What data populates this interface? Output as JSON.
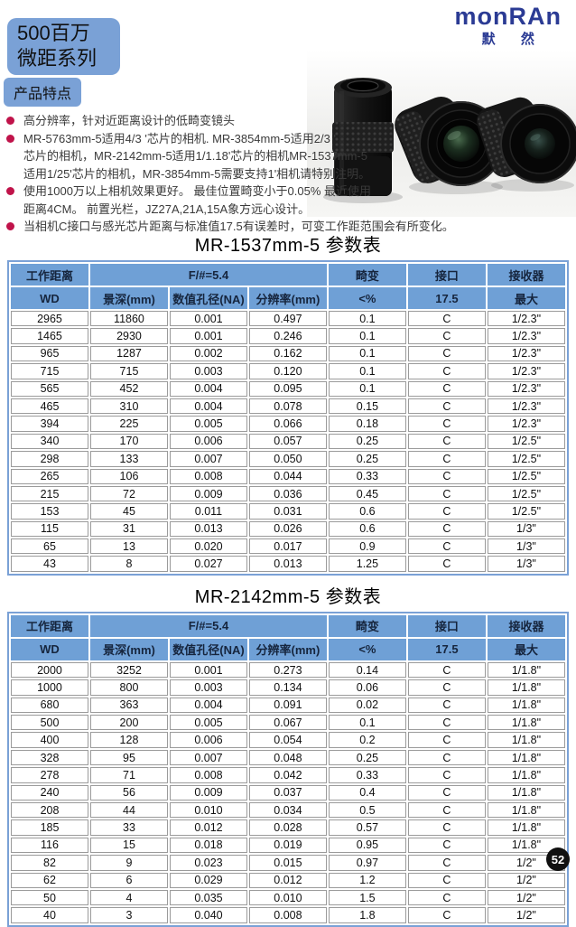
{
  "header": {
    "series_line1": "500百万",
    "series_line2": "微距系列",
    "section_tag": "产品特点"
  },
  "logo": {
    "brand": "monRAn",
    "cn": "默 然",
    "color": "#2b3b94"
  },
  "features": [
    {
      "lines": [
        "高分辨率，针对近距离设计的低畸变镜头"
      ]
    },
    {
      "lines": [
        "MR-5763mm-5适用4/3 '芯片的相机. MR-3854mm-5适用2/3 '",
        "芯片的相机，MR-2142mm-5适用1/1.18'芯片的相机MR-1537mm-5",
        "适用1/25'芯片的相机，MR-3854mm-5需要支持1'相机请特别注明。"
      ]
    },
    {
      "lines": [
        "使用1000万以上相机效果更好。 最佳位置畸变小于0.05% 最近使用",
        "距离4CM。 前置光栏，JZ27A,21A,15A象方远心设计。"
      ]
    },
    {
      "lines": [
        "当相机C接口与感光芯片距离与标准值17.5有误差时，可变工作距范围会有所变化。"
      ]
    }
  ],
  "colors": {
    "box_blue": "#7aa1d6",
    "table_header_blue": "#6fa0d6",
    "bullet_red": "#c0134a"
  },
  "tables": [
    {
      "title": "MR-1537mm-5 参数表",
      "header_row1": [
        {
          "label": "工作距离",
          "span": 1
        },
        {
          "label": "F/#=5.4",
          "span": 3
        },
        {
          "label": "畸变",
          "span": 1
        },
        {
          "label": "接口",
          "span": 1
        },
        {
          "label": "接收器",
          "span": 1
        }
      ],
      "header_row2": [
        "WD",
        "景深(mm)",
        "数值孔径(NA)",
        "分辨率(mm)",
        "<%",
        "17.5",
        "最大"
      ],
      "rows": [
        [
          "2965",
          "11860",
          "0.001",
          "0.497",
          "0.1",
          "C",
          "1/2.3\""
        ],
        [
          "1465",
          "2930",
          "0.001",
          "0.246",
          "0.1",
          "C",
          "1/2.3\""
        ],
        [
          "965",
          "1287",
          "0.002",
          "0.162",
          "0.1",
          "C",
          "1/2.3\""
        ],
        [
          "715",
          "715",
          "0.003",
          "0.120",
          "0.1",
          "C",
          "1/2.3\""
        ],
        [
          "565",
          "452",
          "0.004",
          "0.095",
          "0.1",
          "C",
          "1/2.3\""
        ],
        [
          "465",
          "310",
          "0.004",
          "0.078",
          "0.15",
          "C",
          "1/2.3\""
        ],
        [
          "394",
          "225",
          "0.005",
          "0.066",
          "0.18",
          "C",
          "1/2.3\""
        ],
        [
          "340",
          "170",
          "0.006",
          "0.057",
          "0.25",
          "C",
          "1/2.5\""
        ],
        [
          "298",
          "133",
          "0.007",
          "0.050",
          "0.25",
          "C",
          "1/2.5\""
        ],
        [
          "265",
          "106",
          "0.008",
          "0.044",
          "0.33",
          "C",
          "1/2.5\""
        ],
        [
          "215",
          "72",
          "0.009",
          "0.036",
          "0.45",
          "C",
          "1/2.5\""
        ],
        [
          "153",
          "45",
          "0.011",
          "0.031",
          "0.6",
          "C",
          "1/2.5\""
        ],
        [
          "115",
          "31",
          "0.013",
          "0.026",
          "0.6",
          "C",
          "1/3\""
        ],
        [
          "65",
          "13",
          "0.020",
          "0.017",
          "0.9",
          "C",
          "1/3\""
        ],
        [
          "43",
          "8",
          "0.027",
          "0.013",
          "1.25",
          "C",
          "1/3\""
        ]
      ]
    },
    {
      "title": "MR-2142mm-5 参数表",
      "header_row1": [
        {
          "label": "工作距离",
          "span": 1
        },
        {
          "label": "F/#=5.4",
          "span": 3
        },
        {
          "label": "畸变",
          "span": 1
        },
        {
          "label": "接口",
          "span": 1
        },
        {
          "label": "接收器",
          "span": 1
        }
      ],
      "header_row2": [
        "WD",
        "景深(mm)",
        "数值孔径(NA)",
        "分辨率(mm)",
        "<%",
        "17.5",
        "最大"
      ],
      "rows": [
        [
          "2000",
          "3252",
          "0.001",
          "0.273",
          "0.14",
          "C",
          "1/1.8\""
        ],
        [
          "1000",
          "800",
          "0.003",
          "0.134",
          "0.06",
          "C",
          "1/1.8\""
        ],
        [
          "680",
          "363",
          "0.004",
          "0.091",
          "0.02",
          "C",
          "1/1.8\""
        ],
        [
          "500",
          "200",
          "0.005",
          "0.067",
          "0.1",
          "C",
          "1/1.8\""
        ],
        [
          "400",
          "128",
          "0.006",
          "0.054",
          "0.2",
          "C",
          "1/1.8\""
        ],
        [
          "328",
          "95",
          "0.007",
          "0.048",
          "0.25",
          "C",
          "1/1.8\""
        ],
        [
          "278",
          "71",
          "0.008",
          "0.042",
          "0.33",
          "C",
          "1/1.8\""
        ],
        [
          "240",
          "56",
          "0.009",
          "0.037",
          "0.4",
          "C",
          "1/1.8\""
        ],
        [
          "208",
          "44",
          "0.010",
          "0.034",
          "0.5",
          "C",
          "1/1.8\""
        ],
        [
          "185",
          "33",
          "0.012",
          "0.028",
          "0.57",
          "C",
          "1/1.8\""
        ],
        [
          "116",
          "15",
          "0.018",
          "0.019",
          "0.95",
          "C",
          "1/1.8\""
        ],
        [
          "82",
          "9",
          "0.023",
          "0.015",
          "0.97",
          "C",
          "1/2\""
        ],
        [
          "62",
          "6",
          "0.029",
          "0.012",
          "1.2",
          "C",
          "1/2\""
        ],
        [
          "50",
          "4",
          "0.035",
          "0.010",
          "1.5",
          "C",
          "1/2\""
        ],
        [
          "40",
          "3",
          "0.040",
          "0.008",
          "1.8",
          "C",
          "1/2\""
        ]
      ]
    }
  ],
  "page": {
    "number": "52"
  }
}
